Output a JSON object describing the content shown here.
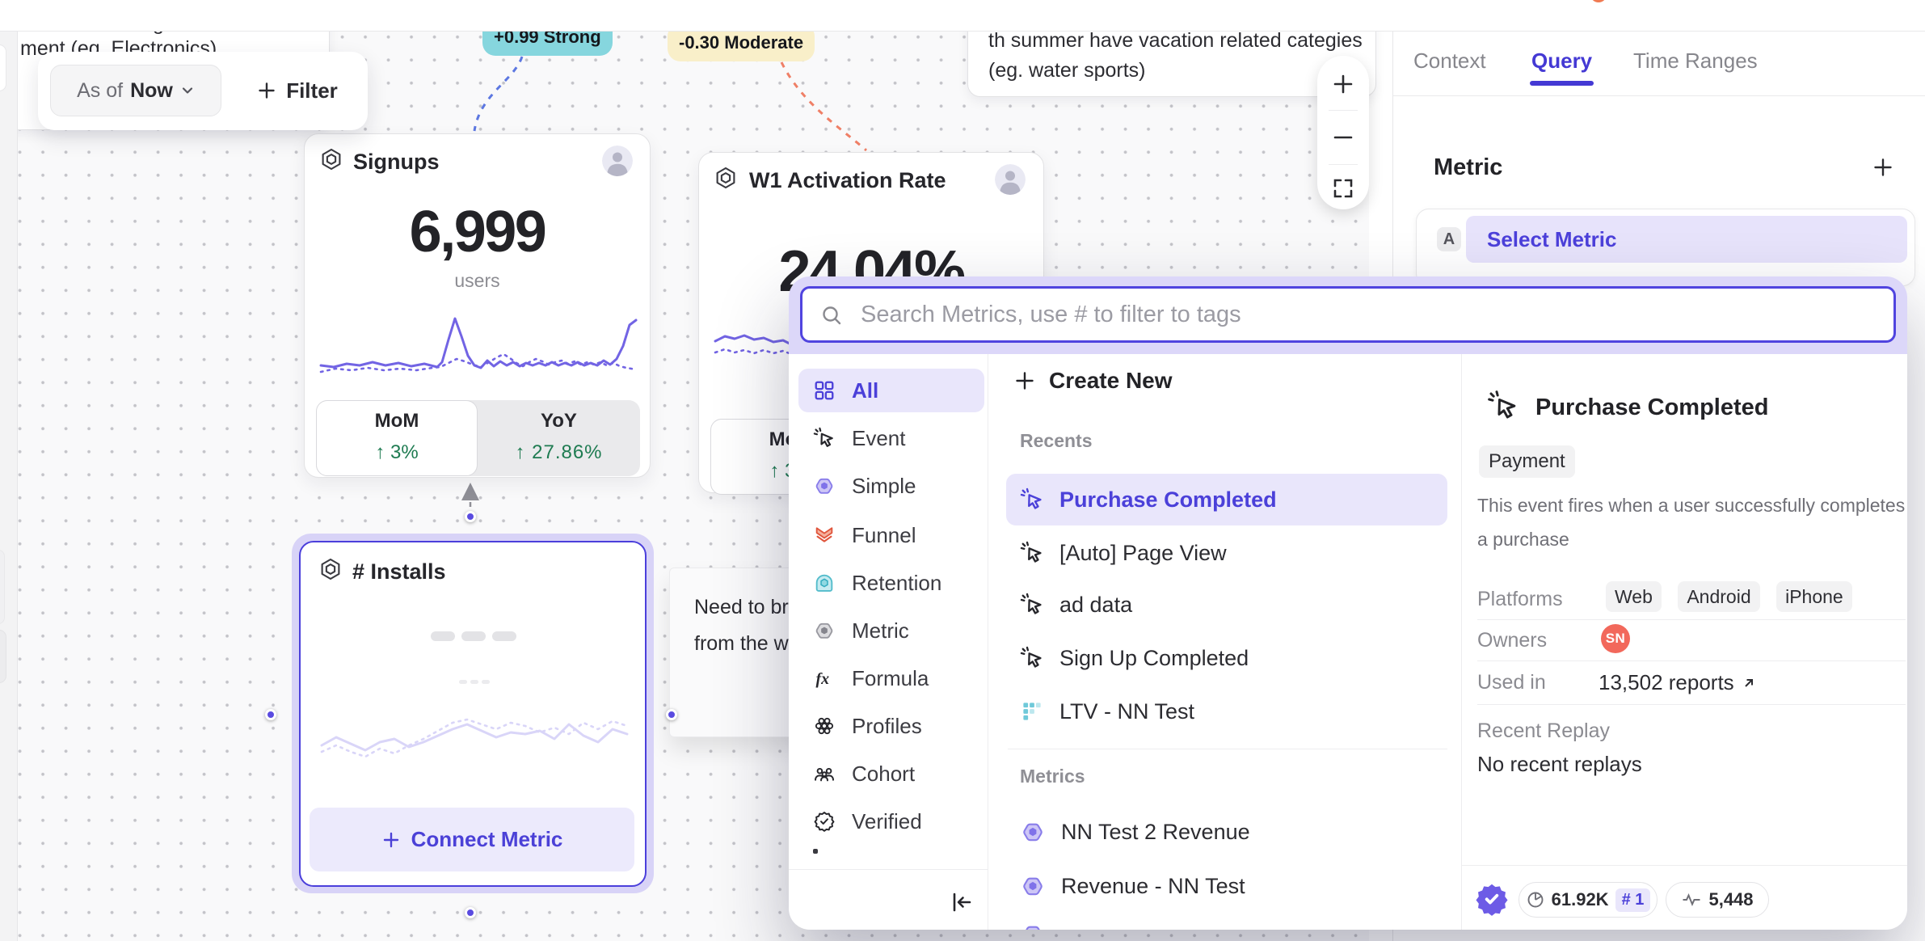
{
  "topbar": {},
  "canvas": {
    "note_electronics": {
      "line1_fragment": "g",
      "line2": "ment  (eg. Electronics)"
    },
    "toolbar": {
      "as_of_label": "As of",
      "as_of_value": "Now",
      "filter_label": "Filter"
    },
    "badge_strong": {
      "text": "+0.99 Strong"
    },
    "badge_moderate": {
      "text": "-0.30 Moderate"
    },
    "note_summer": {
      "line1": "th summer have vacation related categies",
      "line2": "(eg. water sports)"
    },
    "note_need": {
      "line1": "Need to brin",
      "line2": "from the wa"
    },
    "cards": {
      "signups": {
        "title": "Signups",
        "value": "6,999",
        "unit": "users",
        "mom_label": "MoM",
        "mom_delta": "↑ 3%",
        "yoy_label": "YoY",
        "yoy_delta": "↑ 27.86%",
        "spark_solid": [
          [
            2,
            66
          ],
          [
            18,
            68
          ],
          [
            34,
            64
          ],
          [
            50,
            66
          ],
          [
            66,
            62
          ],
          [
            82,
            66
          ],
          [
            98,
            63
          ],
          [
            114,
            67
          ],
          [
            130,
            64
          ],
          [
            146,
            68
          ],
          [
            152,
            62
          ],
          [
            160,
            34
          ],
          [
            168,
            8
          ],
          [
            176,
            30
          ],
          [
            184,
            54
          ],
          [
            192,
            66
          ],
          [
            200,
            69
          ],
          [
            208,
            60
          ],
          [
            216,
            67
          ],
          [
            224,
            61
          ],
          [
            232,
            66
          ],
          [
            240,
            62
          ],
          [
            248,
            67
          ],
          [
            256,
            63
          ],
          [
            264,
            66
          ],
          [
            272,
            63
          ],
          [
            280,
            66
          ],
          [
            288,
            62
          ],
          [
            296,
            66
          ],
          [
            304,
            63
          ],
          [
            312,
            66
          ],
          [
            320,
            62
          ],
          [
            328,
            66
          ],
          [
            336,
            63
          ],
          [
            344,
            66
          ],
          [
            352,
            60
          ],
          [
            360,
            65
          ],
          [
            368,
            58
          ],
          [
            376,
            42
          ],
          [
            384,
            16
          ],
          [
            392,
            10
          ]
        ],
        "spark_dotted": [
          [
            2,
            74
          ],
          [
            20,
            70
          ],
          [
            40,
            72
          ],
          [
            60,
            69
          ],
          [
            80,
            72
          ],
          [
            100,
            70
          ],
          [
            120,
            72
          ],
          [
            140,
            69
          ],
          [
            150,
            68
          ],
          [
            160,
            63
          ],
          [
            170,
            58
          ],
          [
            180,
            61
          ],
          [
            190,
            65
          ],
          [
            200,
            68
          ],
          [
            210,
            62
          ],
          [
            220,
            56
          ],
          [
            228,
            52
          ],
          [
            236,
            57
          ],
          [
            244,
            63
          ],
          [
            252,
            67
          ],
          [
            260,
            62
          ],
          [
            268,
            58
          ],
          [
            276,
            61
          ],
          [
            284,
            65
          ],
          [
            292,
            62
          ],
          [
            300,
            60
          ],
          [
            308,
            64
          ],
          [
            316,
            61
          ],
          [
            324,
            65
          ],
          [
            332,
            62
          ],
          [
            340,
            65
          ],
          [
            348,
            62
          ],
          [
            356,
            66
          ],
          [
            364,
            63
          ],
          [
            372,
            67
          ],
          [
            380,
            69
          ],
          [
            392,
            71
          ]
        ]
      },
      "activation": {
        "title": "W1 Activation Rate",
        "value": "24.04%",
        "mom_label": "MoM",
        "mom_delta": "↑ 3%",
        "spark_solid": [
          [
            2,
            16
          ],
          [
            14,
            10
          ],
          [
            26,
            13
          ],
          [
            38,
            9
          ],
          [
            50,
            14
          ],
          [
            62,
            12
          ],
          [
            74,
            17
          ],
          [
            86,
            15
          ],
          [
            96,
            20
          ],
          [
            110,
            18
          ],
          [
            124,
            22
          ],
          [
            140,
            19
          ],
          [
            160,
            23
          ],
          [
            180,
            20
          ],
          [
            200,
            24
          ],
          [
            220,
            21
          ],
          [
            240,
            25
          ],
          [
            260,
            22
          ],
          [
            280,
            26
          ],
          [
            300,
            23
          ],
          [
            320,
            27
          ],
          [
            340,
            24
          ],
          [
            360,
            27
          ],
          [
            384,
            25
          ]
        ],
        "spark_dotted": [
          [
            2,
            30
          ],
          [
            14,
            26
          ],
          [
            26,
            30
          ],
          [
            38,
            27
          ],
          [
            50,
            31
          ],
          [
            62,
            27
          ],
          [
            74,
            31
          ],
          [
            86,
            28
          ],
          [
            96,
            32
          ],
          [
            110,
            29
          ],
          [
            124,
            33
          ],
          [
            140,
            30
          ],
          [
            160,
            34
          ],
          [
            180,
            31
          ],
          [
            200,
            35
          ],
          [
            220,
            32
          ],
          [
            240,
            35
          ],
          [
            260,
            33
          ],
          [
            280,
            36
          ],
          [
            300,
            33
          ],
          [
            320,
            36
          ],
          [
            340,
            34
          ],
          [
            360,
            37
          ],
          [
            384,
            35
          ]
        ]
      },
      "installs": {
        "title": "# Installs",
        "connect_label": "Connect Metric",
        "spark_solid": [
          [
            2,
            50
          ],
          [
            20,
            40
          ],
          [
            38,
            48
          ],
          [
            56,
            56
          ],
          [
            74,
            46
          ],
          [
            92,
            42
          ],
          [
            110,
            52
          ],
          [
            128,
            46
          ],
          [
            146,
            38
          ],
          [
            164,
            30
          ],
          [
            182,
            24
          ],
          [
            200,
            32
          ],
          [
            218,
            40
          ],
          [
            236,
            34
          ],
          [
            254,
            36
          ],
          [
            272,
            32
          ],
          [
            290,
            42
          ],
          [
            308,
            24
          ],
          [
            326,
            38
          ],
          [
            344,
            46
          ],
          [
            362,
            30
          ],
          [
            380,
            36
          ]
        ],
        "spark_dotted": [
          [
            2,
            58
          ],
          [
            20,
            50
          ],
          [
            38,
            58
          ],
          [
            56,
            64
          ],
          [
            74,
            54
          ],
          [
            92,
            60
          ],
          [
            110,
            50
          ],
          [
            128,
            42
          ],
          [
            146,
            32
          ],
          [
            164,
            22
          ],
          [
            182,
            18
          ],
          [
            200,
            24
          ],
          [
            218,
            30
          ],
          [
            236,
            22
          ],
          [
            254,
            26
          ],
          [
            272,
            34
          ],
          [
            290,
            28
          ],
          [
            308,
            36
          ],
          [
            326,
            22
          ],
          [
            344,
            30
          ],
          [
            362,
            20
          ],
          [
            380,
            26
          ]
        ]
      }
    },
    "zoom_controls": {}
  },
  "panel": {
    "tabs": [
      {
        "label": "Context",
        "active": false
      },
      {
        "label": "Query",
        "active": true
      },
      {
        "label": "Time Ranges",
        "active": false
      }
    ],
    "metric_heading": "Metric",
    "metric_row": {
      "letter": "A",
      "placeholder": "Select Metric"
    }
  },
  "popup": {
    "search_placeholder": "Search Metrics, use # to filter to tags",
    "categories": [
      {
        "label": "All",
        "icon": "grid-all-icon",
        "active": true
      },
      {
        "label": "Event",
        "icon": "event-icon",
        "active": false
      },
      {
        "label": "Simple",
        "icon": "simple-icon",
        "active": false
      },
      {
        "label": "Funnel",
        "icon": "funnel-icon",
        "active": false
      },
      {
        "label": "Retention",
        "icon": "retention-icon",
        "active": false
      },
      {
        "label": "Metric",
        "icon": "metric-icon",
        "active": false
      },
      {
        "label": "Formula",
        "icon": "formula-icon",
        "active": false
      },
      {
        "label": "Profiles",
        "icon": "profiles-icon",
        "active": false
      },
      {
        "label": "Cohort",
        "icon": "cohort-icon",
        "active": false
      },
      {
        "label": "Verified",
        "icon": "verified-icon",
        "active": false
      }
    ],
    "create_new": "Create New",
    "recents_label": "Recents",
    "recents": [
      {
        "label": "Purchase Completed",
        "icon": "event-icon",
        "selected": true
      },
      {
        "label": "[Auto] Page View",
        "icon": "event-icon",
        "selected": false
      },
      {
        "label": "ad data",
        "icon": "event-icon",
        "selected": false
      },
      {
        "label": "Sign Up Completed",
        "icon": "event-icon",
        "selected": false
      },
      {
        "label": "LTV - NN Test",
        "icon": "ltv-grid-icon",
        "selected": false
      }
    ],
    "metrics_label": "Metrics",
    "metrics": [
      {
        "label": "NN Test 2 Revenue",
        "icon": "metric-hex-icon"
      },
      {
        "label": "Revenue - NN Test",
        "icon": "metric-hex-icon"
      }
    ],
    "details": {
      "title": "Purchase Completed",
      "tag": "Payment",
      "description_line1": "This event fires when a user successfully completes",
      "description_line2": "a purchase",
      "platforms_label": "Platforms",
      "platforms": [
        "Web",
        "Android",
        "iPhone"
      ],
      "owners_label": "Owners",
      "owner_initials": "SN",
      "used_in_label": "Used in",
      "used_in_value": "13,502 reports",
      "replay_label": "Recent Replay",
      "replay_value": "No recent replays",
      "stats": {
        "queries": "61.92K",
        "rank": "# 1",
        "events": "5,448"
      }
    }
  }
}
